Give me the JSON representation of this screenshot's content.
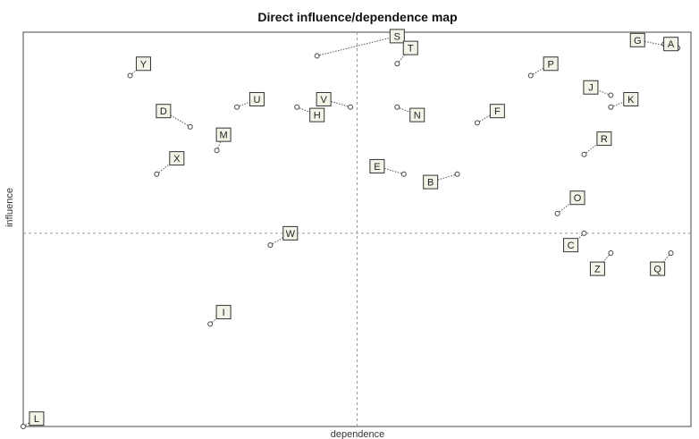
{
  "chart_data": {
    "type": "scatter",
    "title": "Direct influence/dependence map",
    "xlabel": "dependence",
    "ylabel": "influence",
    "xlim": [
      0,
      100
    ],
    "ylim": [
      0,
      100
    ],
    "grid": false,
    "crosshair": {
      "x": 50,
      "y": 49
    },
    "points": [
      {
        "label": "S",
        "x": 44,
        "y": 94,
        "lx": 56,
        "ly": 99
      },
      {
        "label": "T",
        "x": 56,
        "y": 92,
        "lx": 58,
        "ly": 96
      },
      {
        "label": "G",
        "x": 98,
        "y": 96,
        "lx": 92,
        "ly": 98
      },
      {
        "label": "A",
        "x": 96,
        "y": 97,
        "lx": 97,
        "ly": 97
      },
      {
        "label": "Y",
        "x": 16,
        "y": 89,
        "lx": 18,
        "ly": 92
      },
      {
        "label": "P",
        "x": 76,
        "y": 89,
        "lx": 79,
        "ly": 92
      },
      {
        "label": "J",
        "x": 88,
        "y": 84,
        "lx": 85,
        "ly": 86
      },
      {
        "label": "K",
        "x": 88,
        "y": 81,
        "lx": 91,
        "ly": 83
      },
      {
        "label": "U",
        "x": 32,
        "y": 81,
        "lx": 35,
        "ly": 83
      },
      {
        "label": "V",
        "x": 49,
        "y": 81,
        "lx": 45,
        "ly": 83
      },
      {
        "label": "H",
        "x": 41,
        "y": 81,
        "lx": 44,
        "ly": 79
      },
      {
        "label": "N",
        "x": 56,
        "y": 81,
        "lx": 59,
        "ly": 79
      },
      {
        "label": "F",
        "x": 68,
        "y": 77,
        "lx": 71,
        "ly": 80
      },
      {
        "label": "D",
        "x": 25,
        "y": 76,
        "lx": 21,
        "ly": 80
      },
      {
        "label": "M",
        "x": 29,
        "y": 70,
        "lx": 30,
        "ly": 74
      },
      {
        "label": "R",
        "x": 84,
        "y": 69,
        "lx": 87,
        "ly": 73
      },
      {
        "label": "X",
        "x": 20,
        "y": 64,
        "lx": 23,
        "ly": 68
      },
      {
        "label": "E",
        "x": 57,
        "y": 64,
        "lx": 53,
        "ly": 66
      },
      {
        "label": "B",
        "x": 65,
        "y": 64,
        "lx": 61,
        "ly": 62
      },
      {
        "label": "O",
        "x": 80,
        "y": 54,
        "lx": 83,
        "ly": 58
      },
      {
        "label": "W",
        "x": 37,
        "y": 46,
        "lx": 40,
        "ly": 49
      },
      {
        "label": "C",
        "x": 84,
        "y": 49,
        "lx": 82,
        "ly": 46
      },
      {
        "label": "Z",
        "x": 88,
        "y": 44,
        "lx": 86,
        "ly": 40
      },
      {
        "label": "Q",
        "x": 97,
        "y": 44,
        "lx": 95,
        "ly": 40
      },
      {
        "label": "I",
        "x": 28,
        "y": 26,
        "lx": 30,
        "ly": 29
      },
      {
        "label": "L",
        "x": 0,
        "y": 0,
        "lx": 2,
        "ly": 2
      }
    ]
  }
}
